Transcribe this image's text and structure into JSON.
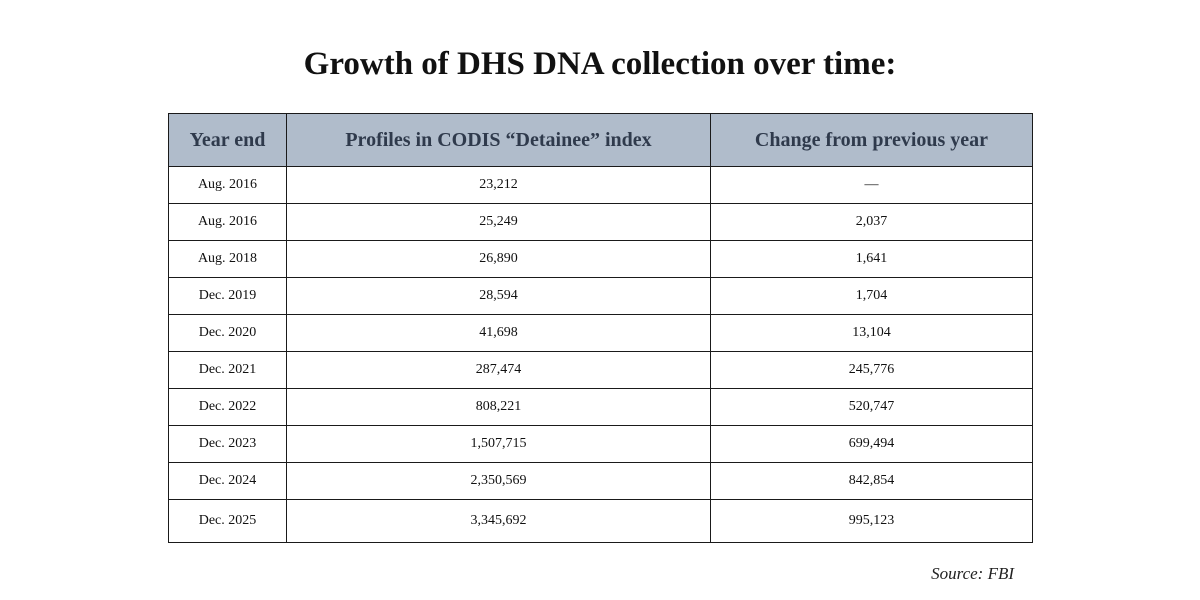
{
  "title": "Growth of DHS DNA collection over time:",
  "table": {
    "headers": [
      "Year end",
      "Profiles in CODIS “Detainee” index",
      "Change from previous year"
    ],
    "rows": [
      [
        "Aug. 2016",
        "23,212",
        "—"
      ],
      [
        "Aug. 2016",
        "25,249",
        "2,037"
      ],
      [
        "Aug. 2018",
        "26,890",
        "1,641"
      ],
      [
        "Dec. 2019",
        "28,594",
        "1,704"
      ],
      [
        "Dec. 2020",
        "41,698",
        "13,104"
      ],
      [
        "Dec. 2021",
        "287,474",
        "245,776"
      ],
      [
        "Dec. 2022",
        "808,221",
        "520,747"
      ],
      [
        "Dec. 2023",
        "1,507,715",
        "699,494"
      ],
      [
        "Dec. 2024",
        "2,350,569",
        "842,854"
      ],
      [
        "Dec. 2025",
        "3,345,692",
        "995,123"
      ]
    ]
  },
  "source": "Source: FBI",
  "colors": {
    "header_bg": "#b0bccb",
    "header_text": "#2f3a4c",
    "border": "#1a1a1a"
  }
}
